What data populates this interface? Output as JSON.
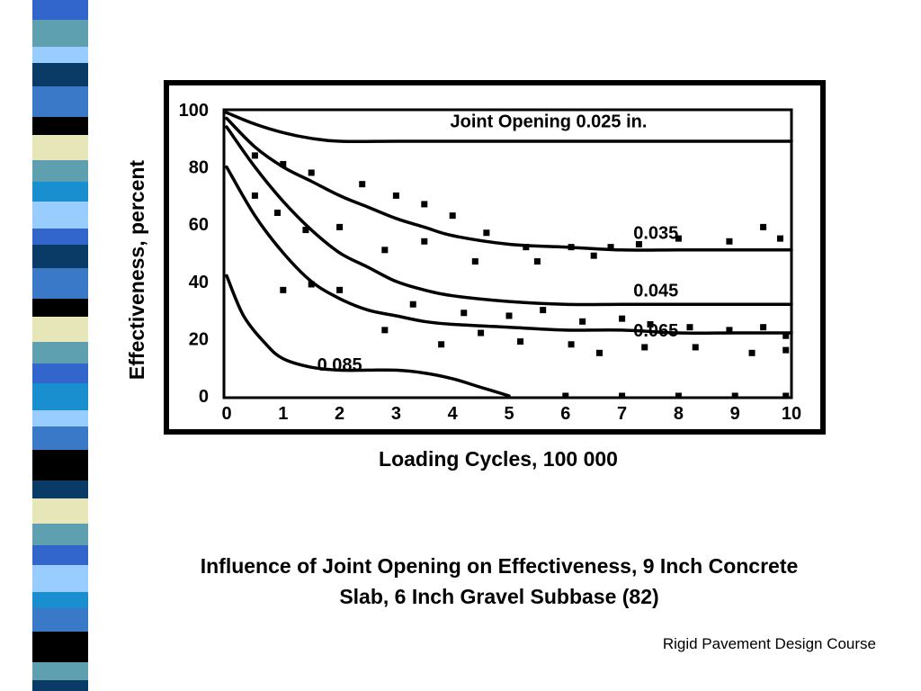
{
  "slide": {
    "caption_line1": "Influence of Joint Opening on Effectiveness, 9 Inch Concrete",
    "caption_line2": "Slab, 6 Inch Gravel Subbase (82)",
    "footer": "Rigid Pavement Design Course",
    "stripe_colors": [
      "#000000",
      "#3366cc",
      "#5fa0b0",
      "#e6e6b8",
      "#1a8fd0",
      "#0a3a66",
      "#99ccff",
      "#3a78c8"
    ]
  },
  "chart_data": {
    "type": "line",
    "xlabel": "Loading Cycles,  100 000",
    "ylabel": "Effectiveness, percent",
    "xlim": [
      0,
      10
    ],
    "ylim": [
      0,
      100
    ],
    "x_ticks": [
      0,
      1,
      2,
      3,
      4,
      5,
      6,
      7,
      8,
      9,
      10
    ],
    "y_ticks": [
      0,
      20,
      40,
      60,
      80,
      100
    ],
    "grid": false,
    "series": [
      {
        "name": "Joint Opening 0.025 in.",
        "x": [
          0,
          0.5,
          1,
          1.5,
          2,
          3,
          4,
          5,
          6,
          7,
          8,
          9,
          10
        ],
        "values": [
          99,
          95,
          92,
          90,
          89,
          89,
          89,
          89,
          89,
          89,
          89,
          89,
          89
        ]
      },
      {
        "name": "0.035",
        "x": [
          0,
          0.5,
          1,
          1.5,
          2,
          2.5,
          3,
          3.5,
          4,
          5,
          6,
          7,
          8,
          9,
          10
        ],
        "values": [
          97,
          87,
          80,
          75,
          70,
          66,
          62,
          59,
          56,
          53,
          52,
          51,
          51,
          51,
          51
        ]
      },
      {
        "name": "0.045",
        "x": [
          0,
          0.5,
          1,
          1.5,
          2,
          2.5,
          3,
          3.5,
          4,
          5,
          6,
          7,
          8,
          9,
          10
        ],
        "values": [
          94,
          80,
          68,
          58,
          50,
          45,
          40,
          37,
          35,
          33,
          32,
          32,
          32,
          32,
          32
        ]
      },
      {
        "name": "0.065",
        "x": [
          0,
          0.5,
          1,
          1.5,
          2,
          2.5,
          3,
          3.5,
          4,
          5,
          6,
          7,
          8,
          9,
          10
        ],
        "values": [
          80,
          63,
          50,
          40,
          34,
          30,
          28,
          26,
          25,
          24,
          23,
          23,
          22,
          22,
          22
        ]
      },
      {
        "name": "0.085",
        "x": [
          0,
          0.3,
          0.7,
          1,
          1.5,
          2,
          2.5,
          3,
          3.5,
          4,
          4.5,
          5
        ],
        "values": [
          42,
          28,
          18,
          13,
          10,
          9,
          9,
          9,
          8,
          6,
          3,
          0
        ]
      }
    ],
    "scatter_points": [
      [
        0.5,
        84
      ],
      [
        1,
        81
      ],
      [
        1.5,
        78
      ],
      [
        2.4,
        74
      ],
      [
        3,
        70
      ],
      [
        3.5,
        67
      ],
      [
        4,
        63
      ],
      [
        4.6,
        57
      ],
      [
        5.3,
        52
      ],
      [
        6.1,
        52
      ],
      [
        6.5,
        49
      ],
      [
        7.3,
        53
      ],
      [
        8,
        55
      ],
      [
        8.9,
        54
      ],
      [
        9.5,
        59
      ],
      [
        9.8,
        55
      ],
      [
        0.5,
        70
      ],
      [
        0.9,
        64
      ],
      [
        1.4,
        58
      ],
      [
        2,
        59
      ],
      [
        2.8,
        51
      ],
      [
        3.5,
        54
      ],
      [
        4.4,
        47
      ],
      [
        5.5,
        47
      ],
      [
        6.8,
        52
      ],
      [
        1,
        37
      ],
      [
        1.5,
        39
      ],
      [
        2,
        37
      ],
      [
        3.3,
        32
      ],
      [
        4.2,
        29
      ],
      [
        5,
        28
      ],
      [
        5.6,
        30
      ],
      [
        6.3,
        26
      ],
      [
        7,
        27
      ],
      [
        7.5,
        25
      ],
      [
        8.2,
        24
      ],
      [
        8.9,
        23
      ],
      [
        9.5,
        24
      ],
      [
        9.9,
        21
      ],
      [
        2.8,
        23
      ],
      [
        3.8,
        18
      ],
      [
        4.5,
        22
      ],
      [
        5.2,
        19
      ],
      [
        6.1,
        18
      ],
      [
        6.6,
        15
      ],
      [
        7.4,
        17
      ],
      [
        8.3,
        17
      ],
      [
        9.3,
        15
      ],
      [
        9.9,
        16
      ],
      [
        6,
        0
      ],
      [
        7,
        0
      ],
      [
        8,
        0
      ],
      [
        9,
        0
      ],
      [
        9.9,
        0
      ]
    ],
    "curve_label_positions": [
      {
        "series": 0,
        "x": 5.7,
        "y": 96
      },
      {
        "series": 1,
        "x": 7.6,
        "y": 57
      },
      {
        "series": 2,
        "x": 7.6,
        "y": 37
      },
      {
        "series": 3,
        "x": 7.6,
        "y": 23
      },
      {
        "series": 4,
        "x": 2,
        "y": 11
      }
    ]
  }
}
